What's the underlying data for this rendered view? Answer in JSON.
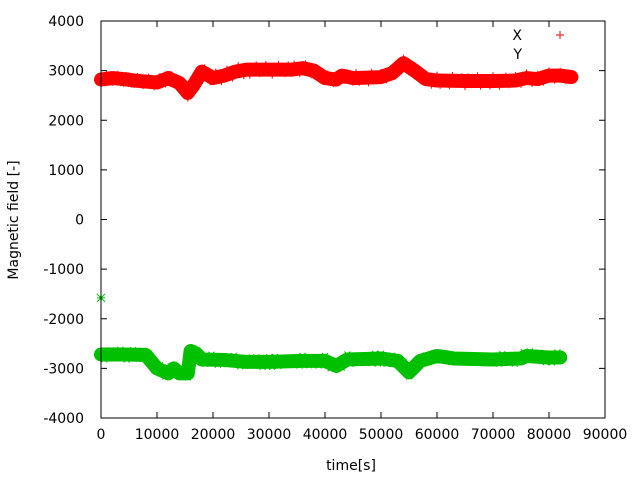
{
  "chart_data": {
    "type": "scatter",
    "title": "",
    "xlabel": "time[s]",
    "ylabel": "Magnetic field [-]",
    "xlim": [
      0,
      90000
    ],
    "ylim": [
      -4000,
      4000
    ],
    "xticks": [
      0,
      10000,
      20000,
      30000,
      40000,
      50000,
      60000,
      70000,
      80000,
      90000
    ],
    "yticks": [
      -4000,
      -3000,
      -2000,
      -1000,
      0,
      1000,
      2000,
      3000,
      4000
    ],
    "grid": false,
    "legend_position": "top-right",
    "series": [
      {
        "name": "X",
        "color": "#ff0000",
        "marker": "plus",
        "x": [
          0,
          2000,
          4000,
          6000,
          8000,
          10000,
          12000,
          14000,
          15500,
          16500,
          18000,
          20000,
          22000,
          24000,
          26000,
          30000,
          34000,
          36000,
          38000,
          40000,
          42000,
          43000,
          45000,
          50000,
          52000,
          54000,
          56000,
          58000,
          60000,
          65000,
          70000,
          74000,
          76000,
          78000,
          80000,
          82000,
          84000
        ],
        "y": [
          2820,
          2850,
          2830,
          2800,
          2780,
          2760,
          2850,
          2750,
          2550,
          2700,
          2980,
          2850,
          2900,
          2980,
          3020,
          3020,
          3020,
          3050,
          3000,
          2850,
          2820,
          2900,
          2850,
          2870,
          2950,
          3150,
          3000,
          2830,
          2800,
          2790,
          2790,
          2800,
          2850,
          2830,
          2900,
          2900,
          2870
        ]
      },
      {
        "name": "Y",
        "color": "#00c000",
        "marker": "cross",
        "x": [
          0,
          4000,
          8000,
          10000,
          12000,
          13000,
          14000,
          15500,
          16000,
          17000,
          18000,
          22000,
          26000,
          30000,
          36000,
          40000,
          42000,
          44000,
          50000,
          53000,
          55000,
          57000,
          60000,
          63000,
          70000,
          75000,
          76000,
          80000,
          82000
        ],
        "y": [
          -2720,
          -2720,
          -2730,
          -3000,
          -3100,
          -3000,
          -3100,
          -3100,
          -2650,
          -2700,
          -2820,
          -2830,
          -2870,
          -2870,
          -2850,
          -2850,
          -2950,
          -2820,
          -2800,
          -2850,
          -3080,
          -2850,
          -2750,
          -2800,
          -2820,
          -2800,
          -2750,
          -2780,
          -2780
        ],
        "outliers": [
          [
            0,
            -1580
          ]
        ]
      }
    ]
  }
}
